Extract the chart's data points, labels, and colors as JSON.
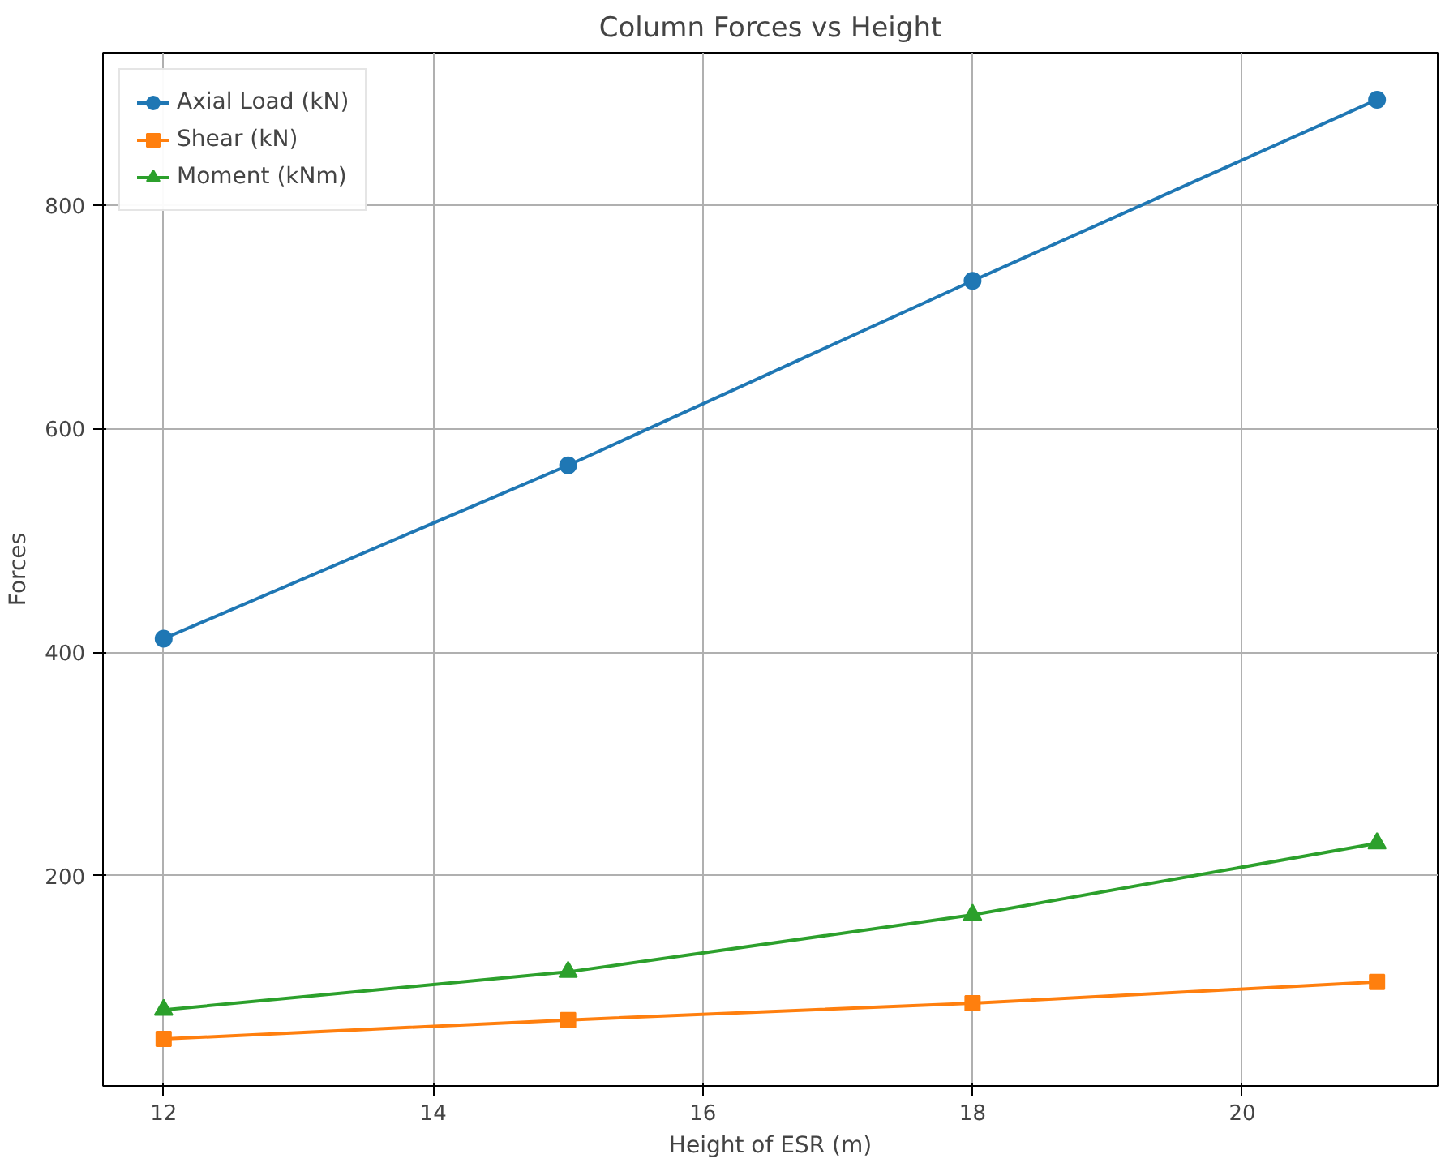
{
  "chart_data": {
    "type": "line",
    "title": "Column Forces vs Height",
    "xlabel": "Height of ESR (m)",
    "ylabel": "Forces",
    "x": [
      12,
      15,
      18,
      21
    ],
    "series": [
      {
        "name": "Axial Load (kN)",
        "color": "#1f77b4",
        "marker": "circle",
        "values": [
          412,
          567,
          732,
          894
        ]
      },
      {
        "name": "Shear (kN)",
        "color": "#ff7f0e",
        "marker": "square",
        "values": [
          54,
          71,
          86,
          105
        ]
      },
      {
        "name": "Moment (kNm)",
        "color": "#2ca02c",
        "marker": "triangle",
        "values": [
          80,
          114,
          165,
          229
        ]
      }
    ],
    "xlim": [
      11.55,
      21.45
    ],
    "ylim": [
      12,
      936
    ],
    "xticks": [
      12,
      14,
      16,
      18,
      20
    ],
    "yticks": [
      200,
      400,
      600,
      800
    ],
    "grid": true,
    "legend": "top left",
    "line_style": "solid"
  }
}
